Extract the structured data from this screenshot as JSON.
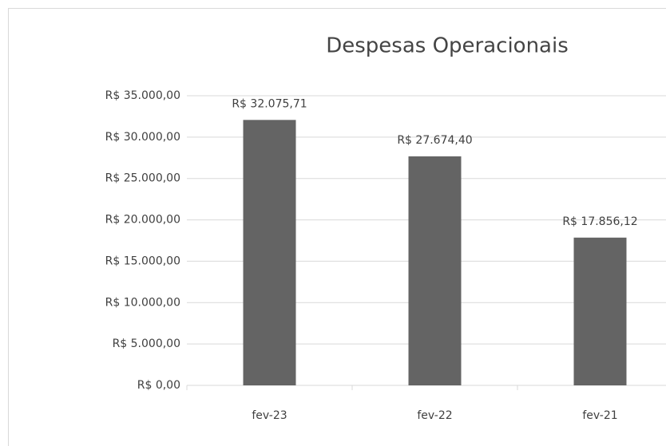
{
  "chart_data": {
    "type": "bar",
    "title": "Despesas Operacionais",
    "categories": [
      "fev-23",
      "fev-22",
      "fev-21"
    ],
    "values": [
      32075.71,
      27674.4,
      17856.12
    ],
    "value_labels": [
      "R$ 32.075,71",
      "R$ 27.674,40",
      "R$ 17.856,12"
    ],
    "color": "#646464",
    "ylim": [
      0,
      35000
    ],
    "yticks": [
      {
        "value": 0,
        "label": "R$ 0,00"
      },
      {
        "value": 5000,
        "label": "R$ 5.000,00"
      },
      {
        "value": 10000,
        "label": "R$ 10.000,00"
      },
      {
        "value": 15000,
        "label": "R$ 15.000,00"
      },
      {
        "value": 20000,
        "label": "R$ 20.000,00"
      },
      {
        "value": 25000,
        "label": "R$ 25.000,00"
      },
      {
        "value": 30000,
        "label": "R$ 30.000,00"
      },
      {
        "value": 35000,
        "label": "R$ 35.000,00"
      }
    ],
    "grid": true
  }
}
